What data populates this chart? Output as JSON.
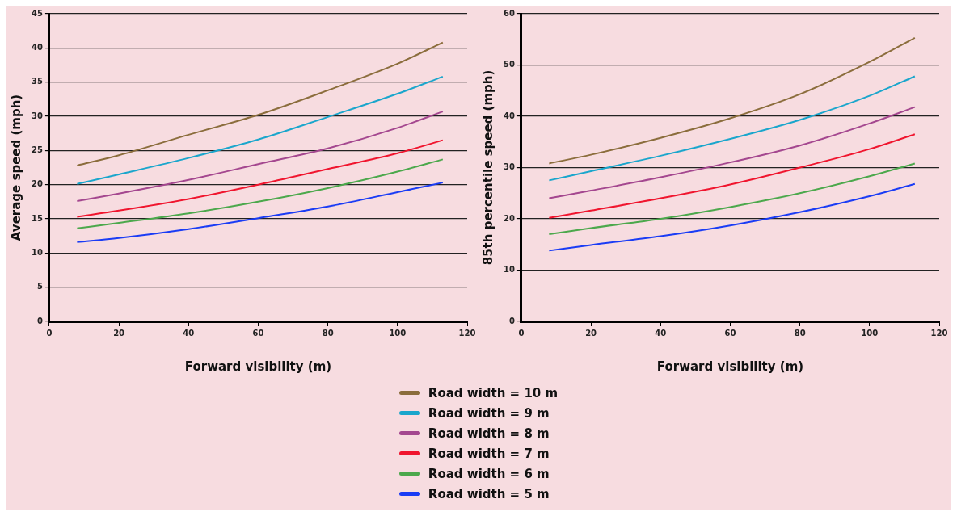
{
  "chart_data": [
    {
      "type": "line",
      "xlabel": "Forward visibility (m)",
      "ylabel": "Average speed (mph)",
      "x": [
        8,
        20,
        40,
        60,
        80,
        100,
        113
      ],
      "xlim": [
        0,
        120
      ],
      "xticks": [
        0,
        20,
        40,
        60,
        80,
        100,
        120
      ],
      "ylim": [
        0,
        45
      ],
      "yticks": [
        0,
        5,
        10,
        15,
        20,
        25,
        30,
        35,
        40,
        45
      ],
      "grid": "y",
      "legend": "bottom",
      "marker": "none",
      "line_style": "solid",
      "series": [
        {
          "name": "Road width = 10 m",
          "color": "#8b6d3c",
          "values": [
            22.8,
            24.3,
            27.3,
            30.2,
            33.8,
            37.7,
            40.8
          ]
        },
        {
          "name": "Road width = 9 m",
          "color": "#1aa6cc",
          "values": [
            20.1,
            21.5,
            23.9,
            26.6,
            29.9,
            33.3,
            35.8
          ]
        },
        {
          "name": "Road width = 8 m",
          "color": "#a4478f",
          "values": [
            17.6,
            18.7,
            20.7,
            23.0,
            25.3,
            28.3,
            30.7
          ]
        },
        {
          "name": "Road width = 7 m",
          "color": "#f0152e",
          "values": [
            15.3,
            16.2,
            17.9,
            20.0,
            22.3,
            24.6,
            26.5
          ]
        },
        {
          "name": "Road width = 6 m",
          "color": "#4ca84c",
          "values": [
            13.6,
            14.4,
            15.8,
            17.5,
            19.5,
            21.9,
            23.7
          ]
        },
        {
          "name": "Road width = 5 m",
          "color": "#1a3cf5",
          "values": [
            11.6,
            12.2,
            13.5,
            15.1,
            16.8,
            18.9,
            20.3
          ]
        }
      ]
    },
    {
      "type": "line",
      "xlabel": "Forward visibility (m)",
      "ylabel": "85th percentile speed (mph)",
      "x": [
        8,
        20,
        40,
        60,
        80,
        100,
        113
      ],
      "xlim": [
        0,
        120
      ],
      "xticks": [
        0,
        20,
        40,
        60,
        80,
        100,
        120
      ],
      "ylim": [
        0,
        60
      ],
      "yticks": [
        0,
        10,
        20,
        30,
        40,
        50,
        60
      ],
      "grid": "y",
      "marker": "none",
      "line_style": "solid",
      "series": [
        {
          "color": "#8b6d3c",
          "values": [
            30.8,
            32.5,
            35.8,
            39.6,
            44.3,
            50.6,
            55.3
          ]
        },
        {
          "color": "#1aa6cc",
          "values": [
            27.5,
            29.3,
            32.3,
            35.6,
            39.3,
            44.0,
            47.8
          ]
        },
        {
          "color": "#a4478f",
          "values": [
            24.0,
            25.5,
            28.1,
            31.0,
            34.3,
            38.6,
            41.8
          ]
        },
        {
          "color": "#f0152e",
          "values": [
            20.2,
            21.6,
            24.0,
            26.7,
            30.0,
            33.6,
            36.5
          ]
        },
        {
          "color": "#4ca84c",
          "values": [
            17.0,
            18.2,
            20.0,
            22.3,
            25.0,
            28.3,
            30.8
          ]
        },
        {
          "color": "#1a3cf5",
          "values": [
            13.8,
            14.9,
            16.6,
            18.7,
            21.3,
            24.4,
            26.8
          ]
        }
      ]
    }
  ]
}
